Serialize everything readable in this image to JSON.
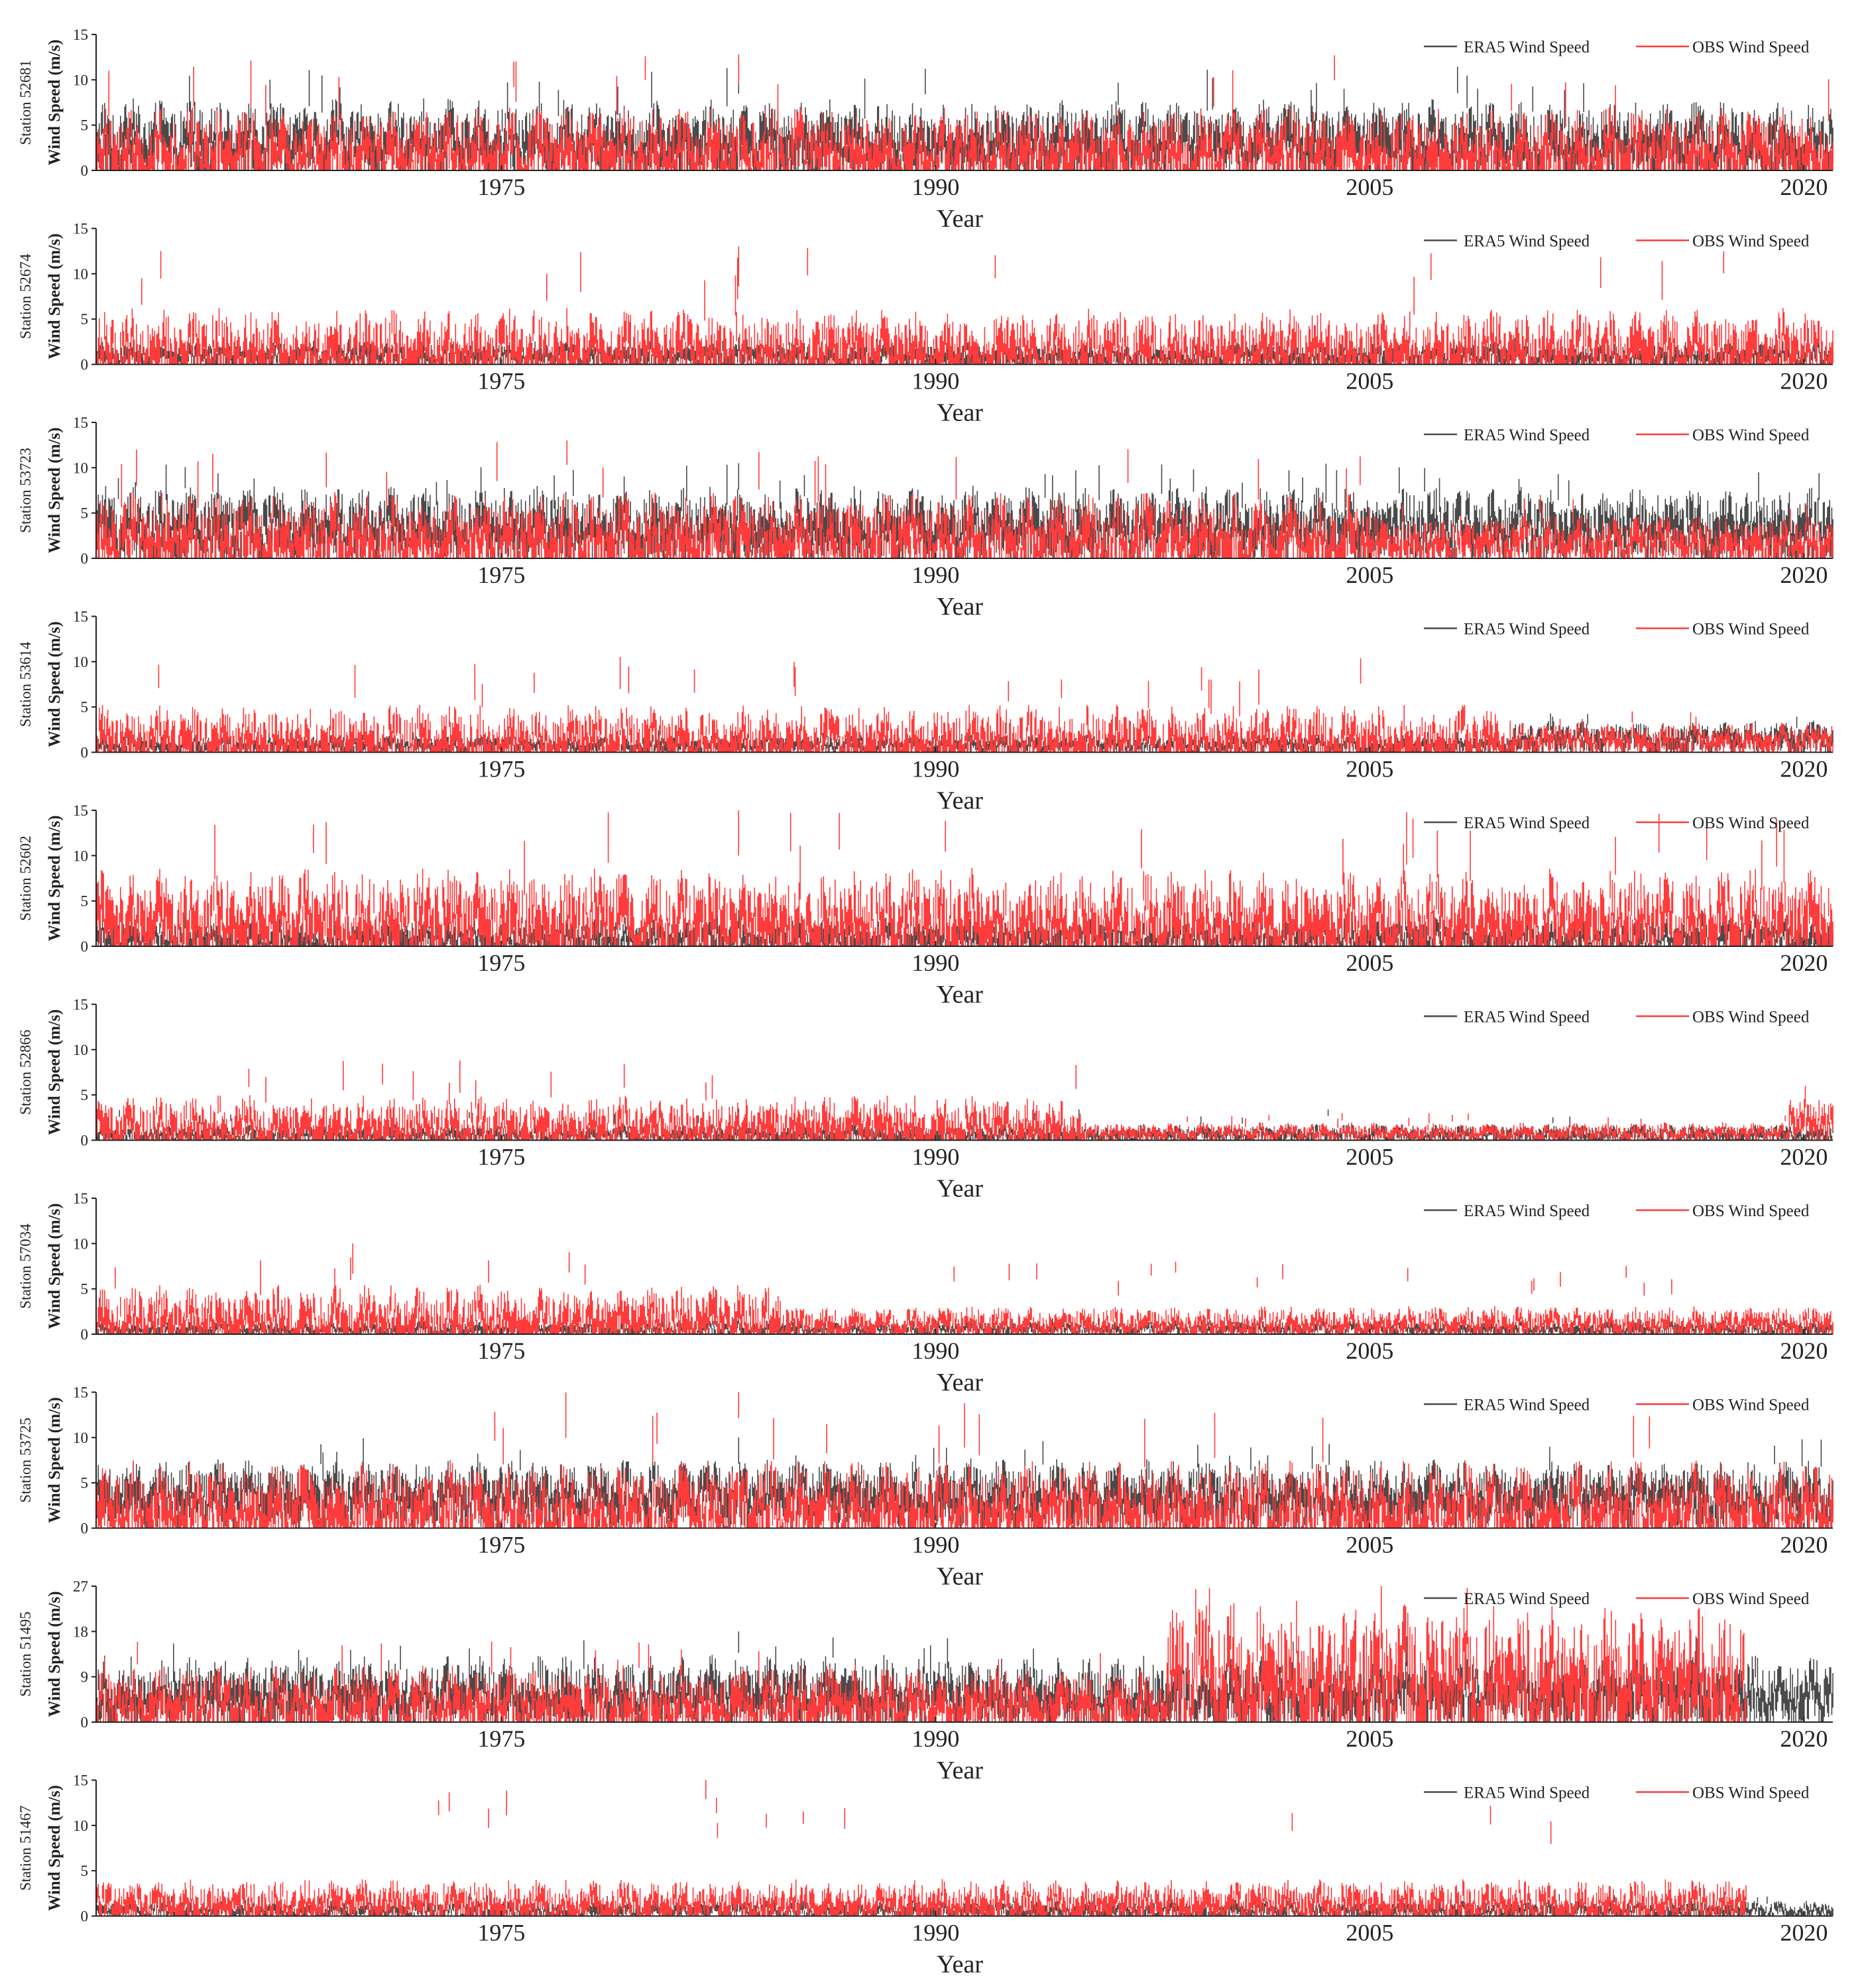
{
  "figure": {
    "colors": {
      "era5": "#4a4a4a",
      "obs": "#ff3b3b",
      "axis": "#222222"
    },
    "years_range": [
      1961,
      2021
    ],
    "x_ticks": [
      "1975",
      "1990",
      "2005",
      "2020"
    ],
    "x_tick_values": [
      1975,
      1990,
      2005,
      2020
    ]
  },
  "chart_data": [
    {
      "type": "line",
      "station_label": "Station  52681",
      "ylabel": "Wind Speed  (m/s)",
      "xlabel": "Year",
      "ylim": [
        0,
        15
      ],
      "yticks": [
        "0",
        "5",
        "10",
        "15"
      ],
      "x_ticks": [
        "1975",
        "1990",
        "2005",
        "2020"
      ],
      "legend": [
        "ERA5  Wind Speed",
        "OBS Wind Speed"
      ],
      "legend_position": "top-right",
      "series": [
        {
          "name": "ERA5  Wind Speed",
          "color": "#4a4a4a",
          "segments": [
            {
              "from": 1961,
              "to": 2021,
              "mean": 4.8,
              "amp": 2.4,
              "peak": 11.5
            }
          ]
        },
        {
          "name": "OBS Wind Speed",
          "color": "#ff3b3b",
          "segments": [
            {
              "from": 1961,
              "to": 2021,
              "mean": 3.6,
              "amp": 2.6,
              "peak": 12.8
            }
          ]
        }
      ]
    },
    {
      "type": "line",
      "station_label": "Station  52674",
      "ylabel": "Wind Speed  (m/s)",
      "xlabel": "Year",
      "ylim": [
        0,
        15
      ],
      "yticks": [
        "0",
        "5",
        "10",
        "15"
      ],
      "x_ticks": [
        "1975",
        "1990",
        "2005",
        "2020"
      ],
      "legend": [
        "ERA5  Wind Speed",
        "OBS Wind Speed"
      ],
      "legend_position": "top-right",
      "series": [
        {
          "name": "ERA5  Wind Speed",
          "color": "#4a4a4a",
          "segments": [
            {
              "from": 1961,
              "to": 2021,
              "mean": 1.5,
              "amp": 0.8,
              "peak": 3.0
            }
          ]
        },
        {
          "name": "OBS Wind Speed",
          "color": "#ff3b3b",
          "segments": [
            {
              "from": 1961,
              "to": 2021,
              "mean": 3.0,
              "amp": 2.4,
              "peak": 13.0
            }
          ]
        }
      ]
    },
    {
      "type": "line",
      "station_label": "Station  53723",
      "ylabel": "Wind Speed  (m/s)",
      "xlabel": "Year",
      "ylim": [
        0,
        15
      ],
      "yticks": [
        "0",
        "5",
        "10",
        "15"
      ],
      "x_ticks": [
        "1975",
        "1990",
        "2005",
        "2020"
      ],
      "legend": [
        "ERA5  Wind Speed",
        "OBS Wind Speed"
      ],
      "legend_position": "top-right",
      "series": [
        {
          "name": "ERA5  Wind Speed",
          "color": "#4a4a4a",
          "segments": [
            {
              "from": 1961,
              "to": 2021,
              "mean": 5.0,
              "amp": 2.3,
              "peak": 10.5
            }
          ]
        },
        {
          "name": "OBS Wind Speed",
          "color": "#ff3b3b",
          "segments": [
            {
              "from": 1961,
              "to": 2005,
              "mean": 3.8,
              "amp": 2.6,
              "peak": 13.0
            },
            {
              "from": 2005,
              "to": 2021,
              "mean": 2.8,
              "amp": 1.6,
              "peak": 7.0
            }
          ]
        }
      ]
    },
    {
      "type": "line",
      "station_label": "Station  53614",
      "ylabel": "Wind Speed  (m/s)",
      "xlabel": "Year",
      "ylim": [
        0,
        15
      ],
      "yticks": [
        "0",
        "5",
        "10",
        "15"
      ],
      "x_ticks": [
        "1975",
        "1990",
        "2005",
        "2020"
      ],
      "legend": [
        "ERA5  Wind Speed",
        "OBS Wind Speed"
      ],
      "legend_position": "top-right",
      "series": [
        {
          "name": "ERA5  Wind Speed",
          "color": "#4a4a4a",
          "segments": [
            {
              "from": 1961,
              "to": 2010,
              "mean": 1.2,
              "amp": 0.6,
              "peak": 2.5
            },
            {
              "from": 2010,
              "to": 2021,
              "mean": 2.2,
              "amp": 1.0,
              "peak": 4.5
            }
          ]
        },
        {
          "name": "OBS Wind Speed",
          "color": "#ff3b3b",
          "segments": [
            {
              "from": 1961,
              "to": 2010,
              "mean": 2.6,
              "amp": 2.0,
              "peak": 10.5
            },
            {
              "from": 2010,
              "to": 2021,
              "mean": 2.0,
              "amp": 1.0,
              "peak": 4.5
            }
          ]
        }
      ]
    },
    {
      "type": "line",
      "station_label": "Station  52602",
      "ylabel": "Wind Speed  (m/s)",
      "xlabel": "Year",
      "ylim": [
        0,
        15
      ],
      "yticks": [
        "0",
        "5",
        "10",
        "15"
      ],
      "x_ticks": [
        "1975",
        "1990",
        "2005",
        "2020"
      ],
      "legend": [
        "ERA5  Wind Speed",
        "OBS Wind Speed"
      ],
      "legend_position": "top-right",
      "series": [
        {
          "name": "ERA5  Wind Speed",
          "color": "#4a4a4a",
          "segments": [
            {
              "from": 1961,
              "to": 2021,
              "mean": 1.6,
              "amp": 1.2,
              "peak": 4.0
            }
          ]
        },
        {
          "name": "OBS Wind Speed",
          "color": "#ff3b3b",
          "segments": [
            {
              "from": 1961,
              "to": 2021,
              "mean": 4.6,
              "amp": 3.0,
              "peak": 15.0
            }
          ]
        }
      ]
    },
    {
      "type": "line",
      "station_label": "Station  52866",
      "ylabel": "Wind Speed  (m/s)",
      "xlabel": "Year",
      "ylim": [
        0,
        15
      ],
      "yticks": [
        "0",
        "5",
        "10",
        "15"
      ],
      "x_ticks": [
        "1975",
        "1990",
        "2005",
        "2020"
      ],
      "legend": [
        "ERA5  Wind Speed",
        "OBS Wind Speed"
      ],
      "legend_position": "top-right",
      "series": [
        {
          "name": "ERA5  Wind Speed",
          "color": "#4a4a4a",
          "segments": [
            {
              "from": 1961,
              "to": 2021,
              "mean": 1.0,
              "amp": 0.6,
              "peak": 3.5
            }
          ]
        },
        {
          "name": "OBS Wind Speed",
          "color": "#ff3b3b",
          "segments": [
            {
              "from": 1961,
              "to": 1995,
              "mean": 2.6,
              "amp": 1.8,
              "peak": 8.8
            },
            {
              "from": 1995,
              "to": 2019.5,
              "mean": 1.2,
              "amp": 0.6,
              "peak": 3.0
            },
            {
              "from": 2019.5,
              "to": 2021,
              "mean": 3.0,
              "amp": 1.6,
              "peak": 6.0
            }
          ]
        }
      ]
    },
    {
      "type": "line",
      "station_label": "Station  57034",
      "ylabel": "Wind Speed  (m/s)",
      "xlabel": "Year",
      "ylim": [
        0,
        15
      ],
      "yticks": [
        "0",
        "5",
        "10",
        "15"
      ],
      "x_ticks": [
        "1975",
        "1990",
        "2005",
        "2020"
      ],
      "legend": [
        "ERA5  Wind Speed",
        "OBS Wind Speed"
      ],
      "legend_position": "top-right",
      "series": [
        {
          "name": "ERA5  Wind Speed",
          "color": "#4a4a4a",
          "segments": [
            {
              "from": 1961,
              "to": 2021,
              "mean": 0.9,
              "amp": 0.5,
              "peak": 2.0
            }
          ]
        },
        {
          "name": "OBS Wind Speed",
          "color": "#ff3b3b",
          "segments": [
            {
              "from": 1961,
              "to": 1985,
              "mean": 2.8,
              "amp": 2.0,
              "peak": 10.0
            },
            {
              "from": 1985,
              "to": 2021,
              "mean": 1.8,
              "amp": 1.0,
              "peak": 8.0
            }
          ]
        }
      ]
    },
    {
      "type": "line",
      "station_label": "Station  53725",
      "ylabel": "Wind Speed  (m/s)",
      "xlabel": "Year",
      "ylim": [
        0,
        15
      ],
      "yticks": [
        "0",
        "5",
        "10",
        "15"
      ],
      "x_ticks": [
        "1975",
        "1990",
        "2005",
        "2020"
      ],
      "legend": [
        "ERA5  Wind Speed",
        "OBS Wind Speed"
      ],
      "legend_position": "top-right",
      "series": [
        {
          "name": "ERA5  Wind Speed",
          "color": "#4a4a4a",
          "segments": [
            {
              "from": 1961,
              "to": 2021,
              "mean": 5.0,
              "amp": 2.0,
              "peak": 10.0
            }
          ]
        },
        {
          "name": "OBS Wind Speed",
          "color": "#ff3b3b",
          "segments": [
            {
              "from": 1961,
              "to": 2021,
              "mean": 3.8,
              "amp": 2.8,
              "peak": 15.0
            }
          ]
        }
      ]
    },
    {
      "type": "line",
      "station_label": "Station  51495",
      "ylabel": "Wind Speed  (m/s)",
      "xlabel": "Year",
      "ylim": [
        0,
        27
      ],
      "yticks": [
        "0",
        "9",
        "18",
        "27"
      ],
      "x_ticks": [
        "1975",
        "1990",
        "2005",
        "2020"
      ],
      "legend": [
        "ERA5  Wind Speed",
        "OBS Wind Speed"
      ],
      "legend_position": "top-right",
      "series": [
        {
          "name": "ERA5  Wind Speed",
          "color": "#4a4a4a",
          "segments": [
            {
              "from": 1961,
              "to": 2021,
              "mean": 8.0,
              "amp": 4.0,
              "peak": 18.0
            }
          ]
        },
        {
          "name": "OBS Wind Speed",
          "color": "#ff3b3b",
          "segments": [
            {
              "from": 1961,
              "to": 1998,
              "mean": 6.0,
              "amp": 4.0,
              "peak": 16.0
            },
            {
              "from": 1998,
              "to": 2018,
              "mean": 13.0,
              "amp": 8.0,
              "peak": 27.0
            }
          ]
        }
      ]
    },
    {
      "type": "line",
      "station_label": "Station  51467",
      "ylabel": "Wind Speed  (m/s)",
      "xlabel": "Year",
      "ylim": [
        0,
        15
      ],
      "yticks": [
        "0",
        "5",
        "10",
        "15"
      ],
      "x_ticks": [
        "1975",
        "1990",
        "2005",
        "2020"
      ],
      "legend": [
        "ERA5  Wind Speed",
        "OBS Wind Speed"
      ],
      "legend_position": "top-right",
      "series": [
        {
          "name": "ERA5  Wind Speed",
          "color": "#4a4a4a",
          "segments": [
            {
              "from": 1961,
              "to": 2021,
              "mean": 1.0,
              "amp": 0.6,
              "peak": 2.5
            }
          ]
        },
        {
          "name": "OBS Wind Speed",
          "color": "#ff3b3b",
          "segments": [
            {
              "from": 1961,
              "to": 2018,
              "mean": 2.2,
              "amp": 1.4,
              "peak": 15.0
            }
          ]
        }
      ]
    }
  ]
}
